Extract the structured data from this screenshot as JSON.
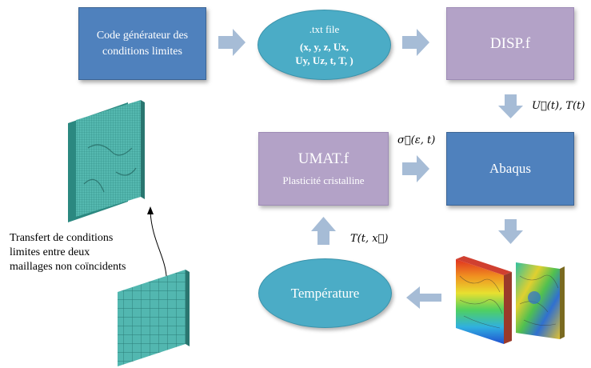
{
  "nodes": {
    "code_generator": {
      "line1": "Code générateur des",
      "line2": "conditions limites"
    },
    "txt_file": {
      "title": ".txt file",
      "line1": "(x, y, z, Ux,",
      "line2": "Uy, Uz, t, T, )"
    },
    "disp": {
      "label": "DISP.f"
    },
    "abaqus": {
      "label": "Abaqus"
    },
    "umat": {
      "title": "UMAT.f",
      "subtitle": "Plasticité cristalline"
    },
    "temperature": {
      "label": "Température"
    }
  },
  "edge_labels": {
    "displacement": "U⃗(t), T(t)",
    "stress": "σ⃗(ε, t)",
    "temperature_field": "T(t, x⃗)"
  },
  "transfer_note": {
    "line1": "Transfert de conditions",
    "line2": "limites entre deux",
    "line3": "maillages non coïncidents"
  },
  "colors": {
    "blue_box": "#4f81bd",
    "purple_box": "#b3a2c7",
    "ellipse": "#4bacc6",
    "arrow": "#a6bcd6",
    "mesh": "#4fb5ad"
  },
  "icons": [
    "fine-mesh-plate-image",
    "coarse-mesh-plate-image",
    "contour-plot-image-1",
    "contour-plot-image-2"
  ]
}
